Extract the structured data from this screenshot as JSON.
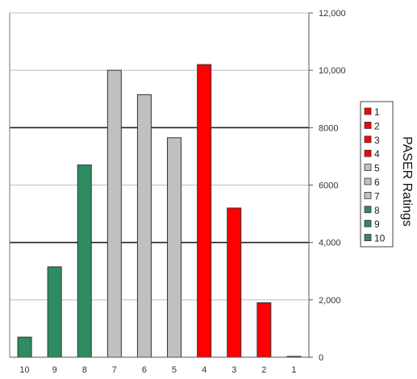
{
  "chart_data": {
    "type": "bar",
    "title": "",
    "xlabel": "",
    "ylabel": "PASER Ratings",
    "categories": [
      "10",
      "9",
      "8",
      "7",
      "6",
      "5",
      "4",
      "3",
      "2",
      "1"
    ],
    "values": [
      700,
      3150,
      6700,
      10000,
      9150,
      7650,
      10200,
      5200,
      1900,
      30
    ],
    "bar_colors": [
      "#2e8b62",
      "#2e8b62",
      "#2e8b62",
      "#c0c0c0",
      "#c0c0c0",
      "#c0c0c0",
      "#ff0000",
      "#ff0000",
      "#ff0000",
      "#ff0000"
    ],
    "ylim": [
      0,
      12000
    ],
    "yticks": [
      0,
      2000,
      4000,
      6000,
      8000,
      10000,
      12000
    ],
    "ytick_labels": [
      "0",
      "2,000",
      "4,000",
      "6000",
      "8000",
      "10,000",
      "12,000"
    ],
    "y_axis_side": "right",
    "grid": true,
    "legend": {
      "placement": "right",
      "entries": [
        {
          "label": "1",
          "color": "#ff0000"
        },
        {
          "label": "2",
          "color": "#ff0000"
        },
        {
          "label": "3",
          "color": "#ff0000"
        },
        {
          "label": "4",
          "color": "#ff0000"
        },
        {
          "label": "5",
          "color": "#c0c0c0"
        },
        {
          "label": "6",
          "color": "#c0c0c0"
        },
        {
          "label": "7",
          "color": "#c0c0c0"
        },
        {
          "label": "8",
          "color": "#2e8b62"
        },
        {
          "label": "9",
          "color": "#2e8b62"
        },
        {
          "label": "10",
          "color": "#2e8b62"
        }
      ]
    }
  }
}
